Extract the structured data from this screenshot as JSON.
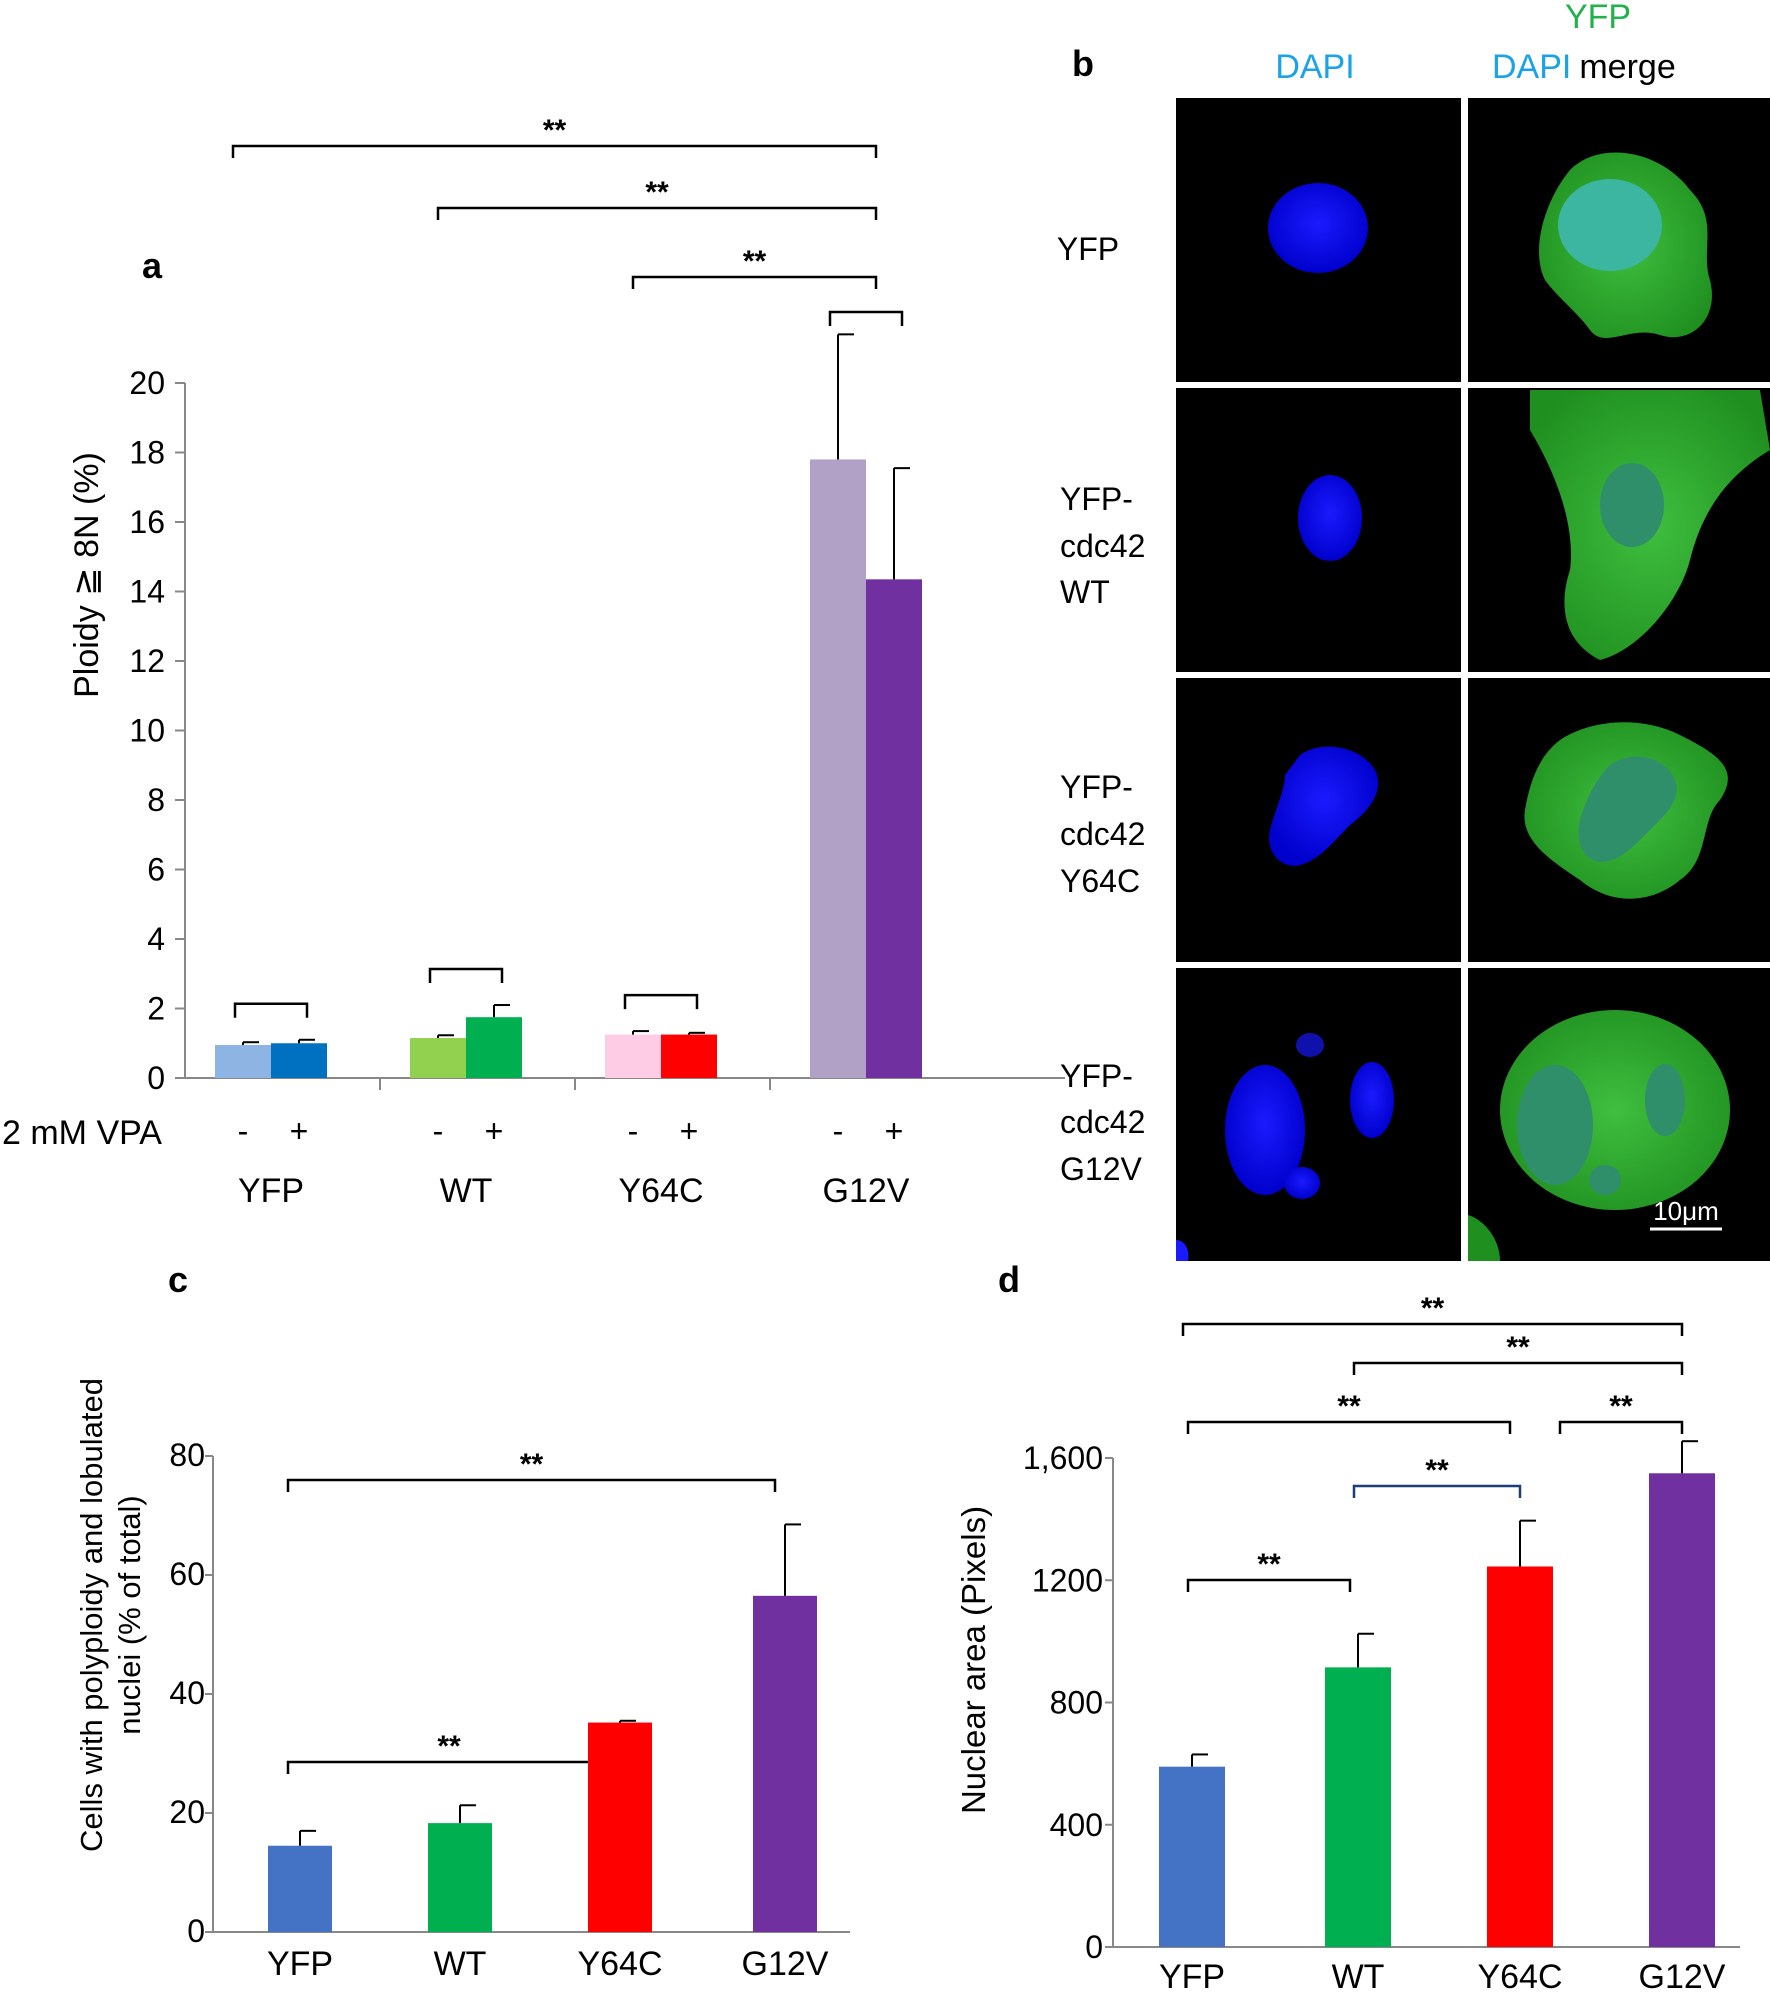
{
  "chart_data": [
    {
      "panel": "a",
      "type": "bar",
      "panel_label": "a",
      "ylabel": "Ploidy ≧ 8N (%)",
      "ylim": [
        0,
        20
      ],
      "yticks": [
        "0",
        "2",
        "4",
        "6",
        "8",
        "10",
        "12",
        "14",
        "16",
        "18",
        "20"
      ],
      "treatment_label": "2 mM VPA",
      "groups": [
        {
          "name": "YFP",
          "bars": [
            {
              "treatment": "-",
              "value": 0.95,
              "error": 0.08,
              "color": "#8EB4E3"
            },
            {
              "treatment": "+",
              "value": 1.0,
              "error": 0.1,
              "color": "#0070C0"
            }
          ]
        },
        {
          "name": "WT",
          "bars": [
            {
              "treatment": "-",
              "value": 1.15,
              "error": 0.08,
              "color": "#92D050"
            },
            {
              "treatment": "+",
              "value": 1.75,
              "error": 0.35,
              "color": "#00B050"
            }
          ]
        },
        {
          "name": "Y64C",
          "bars": [
            {
              "treatment": "-",
              "value": 1.25,
              "error": 0.1,
              "color": "#FFCCE5"
            },
            {
              "treatment": "+",
              "value": 1.25,
              "error": 0.05,
              "color": "#FF0000"
            }
          ]
        },
        {
          "name": "G12V",
          "bars": [
            {
              "treatment": "-",
              "value": 17.8,
              "error": 3.6,
              "color": "#B2A1C7"
            },
            {
              "treatment": "+",
              "value": 14.35,
              "error": 3.2,
              "color": "#7030A0"
            }
          ]
        }
      ],
      "significance": [
        {
          "from": "YFP",
          "to": "G12V",
          "label": "**"
        },
        {
          "from": "WT",
          "to": "G12V",
          "label": "**"
        },
        {
          "from": "Y64C",
          "to": "G12V",
          "label": "**"
        }
      ]
    },
    {
      "panel": "c",
      "type": "bar",
      "panel_label": "c",
      "ylabel_line1": "Cells with polyploidy and lobulated",
      "ylabel_line2": "nuclei (% of total)",
      "ylim": [
        0,
        80
      ],
      "yticks": [
        "0",
        "20",
        "40",
        "60",
        "80"
      ],
      "categories": [
        "YFP",
        "WT",
        "Y64C",
        "G12V"
      ],
      "values": [
        14.5,
        18.3,
        35.2,
        56.5
      ],
      "errors": [
        2.5,
        3.0,
        0.3,
        12.0
      ],
      "colors": [
        "#4472C4",
        "#00B050",
        "#FF0000",
        "#7030A0"
      ],
      "significance": [
        {
          "from": "YFP",
          "to": "G12V",
          "label": "**"
        },
        {
          "from": "YFP",
          "to": "Y64C",
          "label": "**"
        }
      ]
    },
    {
      "panel": "d",
      "type": "bar",
      "panel_label": "d",
      "ylabel": "Nuclear area (Pixels)",
      "ylim": [
        0,
        1600
      ],
      "yticks": [
        "0",
        "400",
        "800",
        "1200",
        "1,600"
      ],
      "categories": [
        "YFP",
        "WT",
        "Y64C",
        "G12V"
      ],
      "values": [
        590,
        915,
        1245,
        1550
      ],
      "errors": [
        40,
        110,
        150,
        105
      ],
      "colors": [
        "#4472C4",
        "#00B050",
        "#FF0000",
        "#7030A0"
      ],
      "significance": [
        {
          "from": "YFP",
          "to": "G12V",
          "label": "**"
        },
        {
          "from": "WT",
          "to": "G12V",
          "label": "**"
        },
        {
          "from": "YFP",
          "to": "Y64C",
          "label": "**"
        },
        {
          "from": "Y64C",
          "to": "G12V",
          "label": "**"
        },
        {
          "from": "WT",
          "to": "Y64C",
          "label": "**"
        },
        {
          "from": "YFP",
          "to": "WT",
          "label": "**"
        }
      ]
    }
  ],
  "panel_b": {
    "panel_label": "b",
    "col_headers": {
      "dapi": "DAPI",
      "yfp": "YFP",
      "dapi2": "DAPI",
      "merge": "merge"
    },
    "colors": {
      "dapi": "#1AA3E8",
      "yfp": "#22B14C"
    },
    "rows": [
      {
        "line1": "YFP",
        "line2": "",
        "line3": ""
      },
      {
        "line1": "YFP-",
        "line2": "cdc42",
        "line3": "WT"
      },
      {
        "line1": "YFP-",
        "line2": "cdc42",
        "line3": "Y64C"
      },
      {
        "line1": "YFP-",
        "line2": "cdc42",
        "line3": "G12V"
      }
    ],
    "scale_bar": "10μm"
  }
}
